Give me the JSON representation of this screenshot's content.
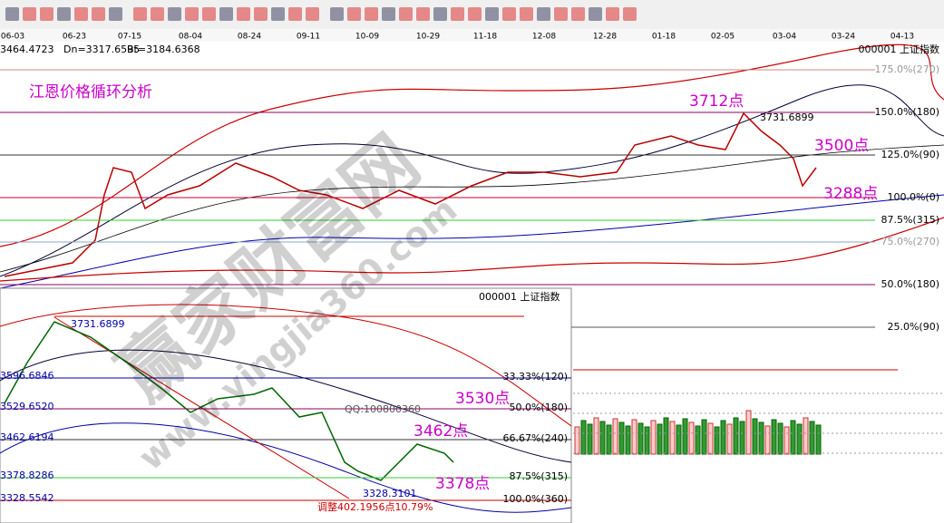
{
  "top_info": {
    "up": "3464.4723",
    "dn": "Dn=3317.6595",
    "bt": "Bt=3184.6368",
    "index": "000001 上证指数"
  },
  "date_axis": [
    "06-03",
    "06-23",
    "07-15",
    "08-04",
    "08-24",
    "09-11",
    "10-09",
    "10-29",
    "11-18",
    "12-08",
    "12-28",
    "01-18",
    "02-05",
    "03-04",
    "03-24",
    "04-13"
  ],
  "main_chart": {
    "title": "江恩价格循环分析",
    "levels": [
      "175.0%(270)",
      "150.0%(180)",
      "125.0%(90)",
      "100.0%(0)",
      "87.5%(315)",
      "75.0%(270)",
      "50.0%(180)",
      "25.0%(90)"
    ],
    "annotations": [
      "3712点",
      "3731.6899",
      "3500点",
      "3288点"
    ]
  },
  "inset_chart": {
    "index": "000001 上证指数",
    "left_labels": [
      "3731.6899",
      "3596.6846",
      "3529.6520",
      "3462.6194",
      "3378.8286",
      "3328.5542"
    ],
    "right_labels": [
      "33.33%(120)",
      "50.0%(180)",
      "66.67%(240)",
      "87.5%(315)",
      "100.0%(360)"
    ],
    "annotations": [
      "3530点",
      "3462点",
      "3378点",
      "QQ:100800360",
      "3328.3101",
      "调整402.1956点10.79%"
    ]
  },
  "watermark": {
    "name": "赢家财富网",
    "url": "www.yingjia360.com"
  }
}
